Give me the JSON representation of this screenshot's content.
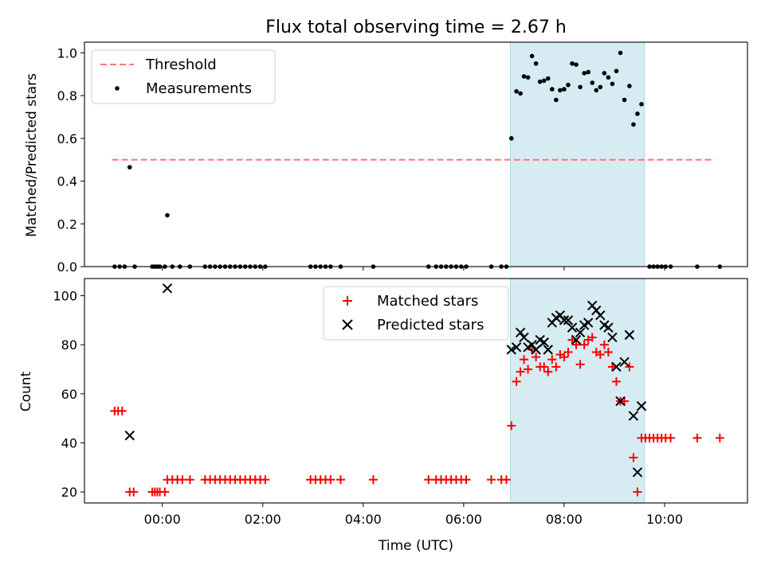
{
  "chart_data": [
    {
      "type": "scatter",
      "title": "Flux total observing time = 2.67 h",
      "xlabel": "",
      "ylabel": "Matched/Predicted stars",
      "ylim": [
        0,
        1.05
      ],
      "yticks": [
        "0.0",
        "0.2",
        "0.4",
        "0.6",
        "0.8",
        "1.0"
      ],
      "xlim": [
        -1.55,
        11.65
      ],
      "shaded_region": {
        "x_start": 6.93,
        "x_end": 9.6,
        "color": "#add8e6"
      },
      "threshold": {
        "name": "Threshold",
        "y": 0.5,
        "x_start": -1.0,
        "x_end": 11.0,
        "color": "#ff7777"
      },
      "legend": {
        "position": "top-left",
        "entries": [
          "Threshold",
          "Measurements"
        ]
      },
      "series": [
        {
          "name": "Measurements",
          "color": "#000000",
          "points": [
            [
              -0.95,
              0
            ],
            [
              -0.85,
              0
            ],
            [
              -0.75,
              0
            ],
            [
              -0.65,
              0.465
            ],
            [
              -0.55,
              0
            ],
            [
              -0.2,
              0
            ],
            [
              -0.15,
              0
            ],
            [
              -0.1,
              0
            ],
            [
              -0.05,
              0
            ],
            [
              0.05,
              0
            ],
            [
              0.1,
              0.24
            ],
            [
              0.2,
              0
            ],
            [
              0.35,
              0
            ],
            [
              0.55,
              0
            ],
            [
              0.85,
              0
            ],
            [
              0.95,
              0
            ],
            [
              1.05,
              0
            ],
            [
              1.15,
              0
            ],
            [
              1.25,
              0
            ],
            [
              1.35,
              0
            ],
            [
              1.45,
              0
            ],
            [
              1.55,
              0
            ],
            [
              1.65,
              0
            ],
            [
              1.75,
              0
            ],
            [
              1.85,
              0
            ],
            [
              1.95,
              0
            ],
            [
              2.05,
              0
            ],
            [
              2.95,
              0
            ],
            [
              3.05,
              0
            ],
            [
              3.15,
              0
            ],
            [
              3.25,
              0
            ],
            [
              3.35,
              0
            ],
            [
              3.55,
              0
            ],
            [
              4.2,
              0
            ],
            [
              5.3,
              0
            ],
            [
              5.45,
              0
            ],
            [
              5.55,
              0
            ],
            [
              5.65,
              0
            ],
            [
              5.75,
              0
            ],
            [
              5.85,
              0
            ],
            [
              5.95,
              0
            ],
            [
              6.05,
              0
            ],
            [
              6.55,
              0
            ],
            [
              6.75,
              0
            ],
            [
              6.85,
              0
            ],
            [
              6.95,
              0.6
            ],
            [
              7.05,
              0.82
            ],
            [
              7.13,
              0.81
            ],
            [
              7.2,
              0.89
            ],
            [
              7.28,
              0.885
            ],
            [
              7.36,
              0.985
            ],
            [
              7.44,
              0.95
            ],
            [
              7.52,
              0.865
            ],
            [
              7.6,
              0.87
            ],
            [
              7.68,
              0.88
            ],
            [
              7.76,
              0.83
            ],
            [
              7.84,
              0.78
            ],
            [
              7.92,
              0.825
            ],
            [
              8.0,
              0.83
            ],
            [
              8.08,
              0.85
            ],
            [
              8.16,
              0.95
            ],
            [
              8.24,
              0.945
            ],
            [
              8.32,
              0.84
            ],
            [
              8.4,
              0.905
            ],
            [
              8.48,
              0.91
            ],
            [
              8.56,
              0.86
            ],
            [
              8.64,
              0.825
            ],
            [
              8.72,
              0.84
            ],
            [
              8.8,
              0.905
            ],
            [
              8.88,
              0.885
            ],
            [
              8.96,
              0.855
            ],
            [
              9.04,
              0.915
            ],
            [
              9.12,
              1.0
            ],
            [
              9.2,
              0.78
            ],
            [
              9.3,
              0.845
            ],
            [
              9.38,
              0.665
            ],
            [
              9.46,
              0.715
            ],
            [
              9.54,
              0.76
            ],
            [
              9.7,
              0
            ],
            [
              9.78,
              0
            ],
            [
              9.86,
              0
            ],
            [
              9.94,
              0
            ],
            [
              10.02,
              0
            ],
            [
              10.12,
              0
            ],
            [
              10.65,
              0
            ],
            [
              11.1,
              0
            ]
          ]
        }
      ]
    },
    {
      "type": "scatter",
      "title": "",
      "xlabel": "Time (UTC)",
      "ylabel": "Count",
      "ylim": [
        15.5,
        107
      ],
      "yticks": [
        "20",
        "40",
        "60",
        "80",
        "100"
      ],
      "xlim": [
        -1.55,
        11.65
      ],
      "xticks": [
        "00:00",
        "02:00",
        "04:00",
        "06:00",
        "08:00",
        "10:00"
      ],
      "shaded_region": {
        "x_start": 6.93,
        "x_end": 9.6,
        "color": "#add8e6"
      },
      "legend": {
        "position": "top-center",
        "entries": [
          "Matched stars",
          "Predicted stars"
        ]
      },
      "series": [
        {
          "name": "Matched stars",
          "marker": "plus",
          "color": "#ff0000",
          "points": [
            [
              -0.95,
              53
            ],
            [
              -0.88,
              53
            ],
            [
              -0.8,
              53
            ],
            [
              -0.65,
              20
            ],
            [
              -0.57,
              20
            ],
            [
              -0.2,
              20
            ],
            [
              -0.15,
              20
            ],
            [
              -0.1,
              20
            ],
            [
              -0.05,
              20
            ],
            [
              0.05,
              20
            ],
            [
              0.1,
              25
            ],
            [
              0.2,
              25
            ],
            [
              0.3,
              25
            ],
            [
              0.4,
              25
            ],
            [
              0.55,
              25
            ],
            [
              0.85,
              25
            ],
            [
              0.95,
              25
            ],
            [
              1.05,
              25
            ],
            [
              1.15,
              25
            ],
            [
              1.25,
              25
            ],
            [
              1.35,
              25
            ],
            [
              1.45,
              25
            ],
            [
              1.55,
              25
            ],
            [
              1.65,
              25
            ],
            [
              1.75,
              25
            ],
            [
              1.85,
              25
            ],
            [
              1.95,
              25
            ],
            [
              2.05,
              25
            ],
            [
              2.95,
              25
            ],
            [
              3.05,
              25
            ],
            [
              3.15,
              25
            ],
            [
              3.25,
              25
            ],
            [
              3.35,
              25
            ],
            [
              3.55,
              25
            ],
            [
              4.2,
              25
            ],
            [
              5.3,
              25
            ],
            [
              5.45,
              25
            ],
            [
              5.55,
              25
            ],
            [
              5.65,
              25
            ],
            [
              5.75,
              25
            ],
            [
              5.85,
              25
            ],
            [
              5.95,
              25
            ],
            [
              6.05,
              25
            ],
            [
              6.55,
              25
            ],
            [
              6.75,
              25
            ],
            [
              6.85,
              25
            ],
            [
              6.95,
              47
            ],
            [
              7.05,
              65
            ],
            [
              7.13,
              69
            ],
            [
              7.2,
              74
            ],
            [
              7.28,
              70
            ],
            [
              7.36,
              78
            ],
            [
              7.44,
              75
            ],
            [
              7.52,
              71
            ],
            [
              7.6,
              71
            ],
            [
              7.68,
              69
            ],
            [
              7.76,
              74
            ],
            [
              7.84,
              71
            ],
            [
              7.92,
              76
            ],
            [
              8.0,
              75
            ],
            [
              8.08,
              77
            ],
            [
              8.16,
              82
            ],
            [
              8.24,
              80
            ],
            [
              8.32,
              72
            ],
            [
              8.4,
              80
            ],
            [
              8.48,
              82
            ],
            [
              8.56,
              83
            ],
            [
              8.64,
              77
            ],
            [
              8.72,
              76
            ],
            [
              8.8,
              80
            ],
            [
              8.88,
              77
            ],
            [
              8.96,
              71
            ],
            [
              9.04,
              65
            ],
            [
              9.12,
              57
            ],
            [
              9.2,
              57
            ],
            [
              9.3,
              71
            ],
            [
              9.38,
              34
            ],
            [
              9.46,
              20
            ],
            [
              9.54,
              42
            ],
            [
              9.62,
              42
            ],
            [
              9.7,
              42
            ],
            [
              9.78,
              42
            ],
            [
              9.86,
              42
            ],
            [
              9.94,
              42
            ],
            [
              10.02,
              42
            ],
            [
              10.12,
              42
            ],
            [
              10.65,
              42
            ],
            [
              11.1,
              42
            ]
          ]
        },
        {
          "name": "Predicted stars",
          "marker": "x",
          "color": "#000000",
          "points": [
            [
              -0.65,
              43
            ],
            [
              0.1,
              103
            ],
            [
              6.95,
              78
            ],
            [
              7.05,
              79
            ],
            [
              7.13,
              85
            ],
            [
              7.2,
              83
            ],
            [
              7.28,
              79
            ],
            [
              7.36,
              80
            ],
            [
              7.44,
              78
            ],
            [
              7.52,
              82
            ],
            [
              7.6,
              81
            ],
            [
              7.68,
              78
            ],
            [
              7.76,
              89
            ],
            [
              7.84,
              91
            ],
            [
              7.92,
              92
            ],
            [
              8.0,
              90
            ],
            [
              8.08,
              90
            ],
            [
              8.16,
              87
            ],
            [
              8.24,
              82
            ],
            [
              8.32,
              85
            ],
            [
              8.4,
              88
            ],
            [
              8.48,
              89
            ],
            [
              8.56,
              96
            ],
            [
              8.64,
              94
            ],
            [
              8.72,
              92
            ],
            [
              8.8,
              88
            ],
            [
              8.88,
              87
            ],
            [
              8.96,
              83
            ],
            [
              9.04,
              71
            ],
            [
              9.12,
              57
            ],
            [
              9.2,
              73
            ],
            [
              9.3,
              84
            ],
            [
              9.38,
              51
            ],
            [
              9.46,
              28
            ],
            [
              9.54,
              55
            ]
          ]
        }
      ]
    }
  ]
}
